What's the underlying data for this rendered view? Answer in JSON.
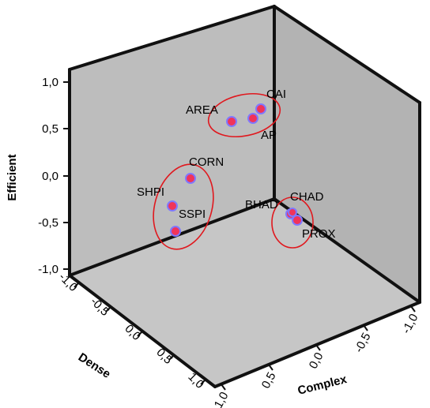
{
  "chart_data": {
    "type": "scatter",
    "subtype": "3d-scatter",
    "title": "",
    "axes": {
      "vertical": {
        "label": "Efficient",
        "ticks": [
          "1,0",
          "0,5",
          "0,0",
          "-0,5",
          "-1,0"
        ],
        "range": [
          -1.0,
          1.0
        ]
      },
      "left_depth": {
        "label": "Dense",
        "ticks": [
          "-1,0",
          "-0,5",
          "0,0",
          "0,5",
          "1,0"
        ],
        "range": [
          -1.0,
          1.0
        ]
      },
      "right_depth": {
        "label": "Complex",
        "ticks": [
          "1,0",
          "0,5",
          "0,0",
          "-0,5",
          "-1,0"
        ],
        "range": [
          -1.0,
          1.0
        ]
      }
    },
    "points": [
      {
        "label": "AREA",
        "efficient": 0.57
      },
      {
        "label": "CAI",
        "efficient": 0.7
      },
      {
        "label": "AP",
        "efficient": 0.58
      },
      {
        "label": "CORN",
        "efficient": -0.05
      },
      {
        "label": "SHPI",
        "efficient": -0.33
      },
      {
        "label": "SSPI",
        "efficient": -0.6
      },
      {
        "label": "BHAD",
        "efficient": -0.45
      },
      {
        "label": "CHAD",
        "efficient": -0.42
      },
      {
        "label": "PROX",
        "efficient": -0.5
      }
    ],
    "grid": false,
    "legend": "none",
    "colors": {
      "wall": "#bdbdbd",
      "wall_side": "#b3b3b3",
      "floor": "#c6c6c6",
      "marker_fill": "#f0345a",
      "marker_edge": "#7f78ff",
      "cluster_outline": "#e0181e"
    }
  }
}
